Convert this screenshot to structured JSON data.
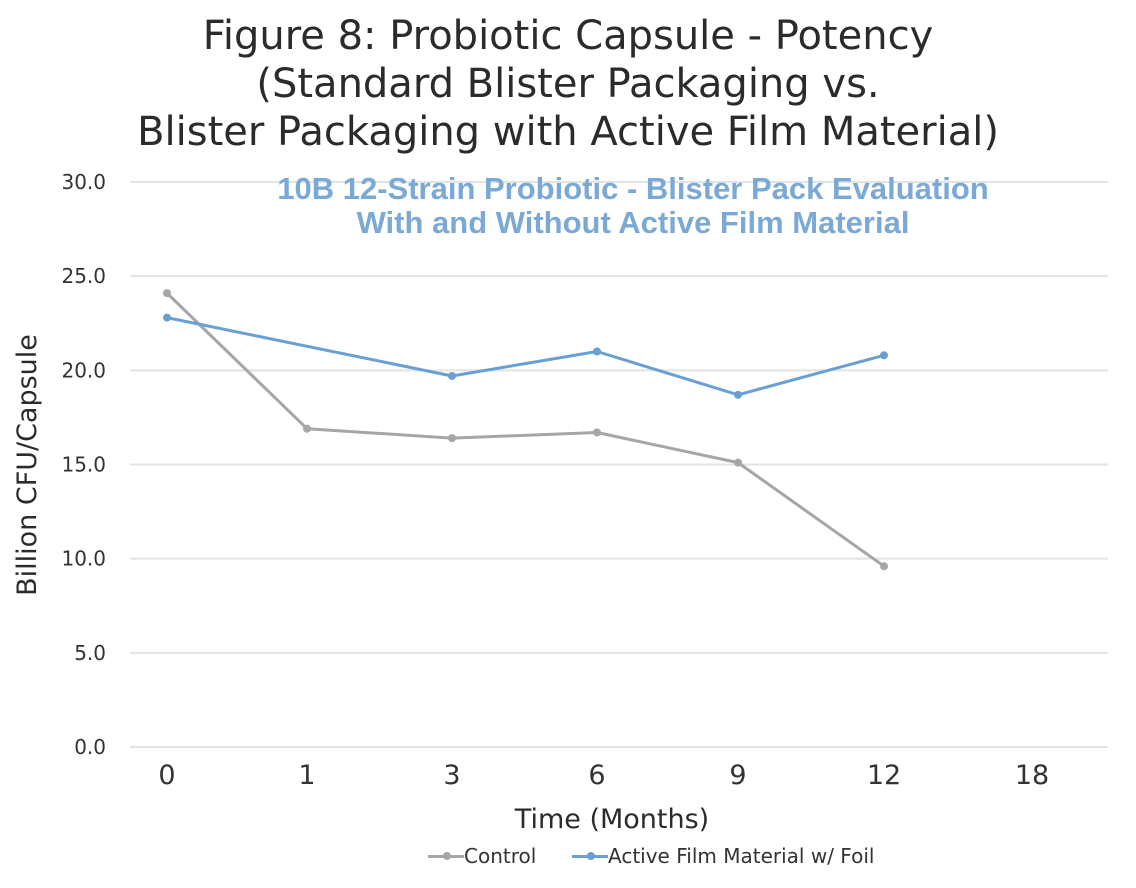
{
  "chart_data": {
    "type": "line",
    "title_lines": [
      "Figure 8: Probiotic Capsule - Potency",
      "(Standard Blister Packaging vs.",
      "Blister Packaging with Active Film Material)"
    ],
    "subtitle_lines": [
      "10B 12-Strain Probiotic - Blister Pack Evaluation",
      "With and Without Active Film Material"
    ],
    "xlabel": "Time (Months)",
    "ylabel": "Billion CFU/Capsule",
    "categories": [
      "0",
      "1",
      "3",
      "6",
      "9",
      "12",
      "18"
    ],
    "y_ticks": [
      "0.0",
      "5.0",
      "10.0",
      "15.0",
      "20.0",
      "25.0",
      "30.0"
    ],
    "ylim": [
      0,
      30
    ],
    "grid": true,
    "legend_position": "bottom",
    "series": [
      {
        "name": "Control",
        "color": "#a6a6a6",
        "values": [
          24.1,
          16.9,
          16.4,
          16.7,
          15.1,
          9.6,
          null
        ]
      },
      {
        "name": "Active Film Material w/ Foil",
        "color": "#6a9fd4",
        "values": [
          22.8,
          null,
          19.7,
          21.0,
          18.7,
          20.8,
          null
        ]
      }
    ]
  }
}
